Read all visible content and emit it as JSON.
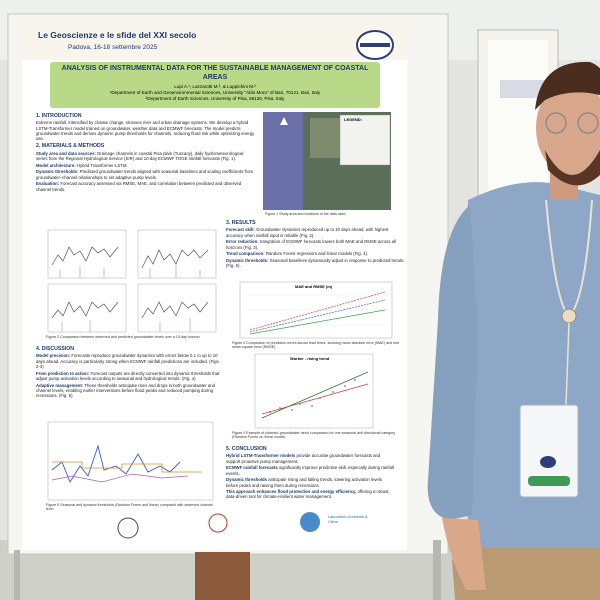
{
  "header": {
    "conference": "Le Geoscienze e le sfide del XXI secolo",
    "location": "Padova, 16-18 settembre 2025"
  },
  "poster": {
    "title": "ANALYSIS OF INSTRUMENTAL DATA FOR THE SUSTAINABLE MANAGEMENT OF COASTAL AREAS",
    "authors": "Lupi A.¹, Lazzarotti M.², & Luppichini M.²",
    "affiliations": [
      "¹Department of Earth and Geoenvironmental Sciences, University \"Aldo Moro\" of Bari, 70121, Bari, Italy",
      "²Department of Earth Sciences, University of Pisa, 56126, Pisa, Italy"
    ],
    "introduction": {
      "heading": "1. INTRODUCTION",
      "text": "Extreme rainfall, intensified by climate change, stresses river and urban drainage systems. We develop a hybrid LSTM-Transformer model trained on groundwater, weather data and ECMWF forecasts. The model predicts groundwater trends and derives dynamic pump thresholds for channels, reducing flood risk while optimizing energy use."
    },
    "methods": {
      "heading": "2. MATERIALS & METHODS",
      "items": [
        {
          "lead": "Study area and data sources:",
          "text": "Drainage channels in coastal Pisa plain (Tuscany), daily hydrometeorological series from the Regional Hydrological Service (SIR) and 10-day ECMWF TOGE rainfall forecasts (Fig. 1)."
        },
        {
          "lead": "Model architecture:",
          "text": "Hybrid Transformer-LSTM."
        },
        {
          "lead": "Dynamic thresholds:",
          "text": "Predicted groundwater trends aligned with seasonal baselines and scaling coefficients from groundwater–channel relationships to set adaptive pump levels."
        },
        {
          "lead": "Evaluation:",
          "text": "Forecast accuracy assessed via RMSE, MAE, and correlation between predicted and observed channel trends."
        }
      ]
    },
    "results": {
      "heading": "3. RESULTS",
      "items": [
        {
          "lead": "Forecast skill:",
          "text": "Groundwater dynamics reproduced up to 10 days ahead, with highest accuracy when rainfall input is reliable (Fig. 2)."
        },
        {
          "lead": "Error reduction:",
          "text": "Integration of ECMWF forecasts lowers both MAE and RMSE across all horizons (Fig. 3)."
        },
        {
          "lead": "Trend comparison:",
          "text": "Random Forest regressors and linear models (Fig. 4)."
        },
        {
          "lead": "Dynamic thresholds:",
          "text": "Seasonal baselines dynamically adjust in response to predicted trends (Fig. 5)."
        }
      ]
    },
    "discussion": {
      "heading": "4. DISCUSSION",
      "items": [
        {
          "lead": "Model precision:",
          "text": "Forecasts reproduce groundwater dynamics with errors below 0.1 m up to 10 days ahead. Accuracy is particularly strong when ECMWF rainfall predictions are included. (Figs. 2-3)"
        },
        {
          "lead": "From prediction to action:",
          "text": "Forecast outputs are directly converted into dynamic thresholds that adjust pump activation levels according to seasonal and hydrological trends. (Fig. 4)"
        },
        {
          "lead": "Adaptive management:",
          "text": "These thresholds anticipate rises and drops in both groundwater and channel levels, enabling earlier interventions before flood peaks and reduced pumping during recessions. (Fig. 5)"
        }
      ]
    },
    "conclusion": {
      "heading": "5. CONCLUSION",
      "items": [
        {
          "lead": "Hybrid LSTM-Transformer models",
          "text": "provide accurate groundwater forecasts and support proactive pump management."
        },
        {
          "lead": "ECMWF rainfall forecasts",
          "text": "significantly improve predictive skill, especially during rainfall events."
        },
        {
          "lead": "Dynamic thresholds",
          "text": "anticipate rising and falling trends, lowering activation levels before peaks and raising them during recessions."
        },
        {
          "lead": "This approach enhances flood protection and energy efficiency,",
          "text": "offering a robust, data-driven tool for climate-resilient water management."
        }
      ]
    },
    "legend_title": "LEGEND:",
    "chart_titles": [
      "MAE and RMSE (m)",
      "Worker - rising trend"
    ],
    "captions": [
      "Figure 1 Study area and locations of the data used",
      "Figure 2 Comparison between observed and predicted groundwater levels over a 10-day horizon",
      "Figure 3 Comparison of prediction errors across lead times, showing mean absolute error (MAE) and root mean square error (RMSE).",
      "Figure 4 Example of channel–groundwater trend comparison for one seasonal and directional category (Random Forest vs. linear model).",
      "Figure 5 Seasonal and dynamic thresholds (Random Forest and linear) compared with observed channel level"
    ],
    "lab_logo": "Laboratorio Ambiente & Clima"
  }
}
